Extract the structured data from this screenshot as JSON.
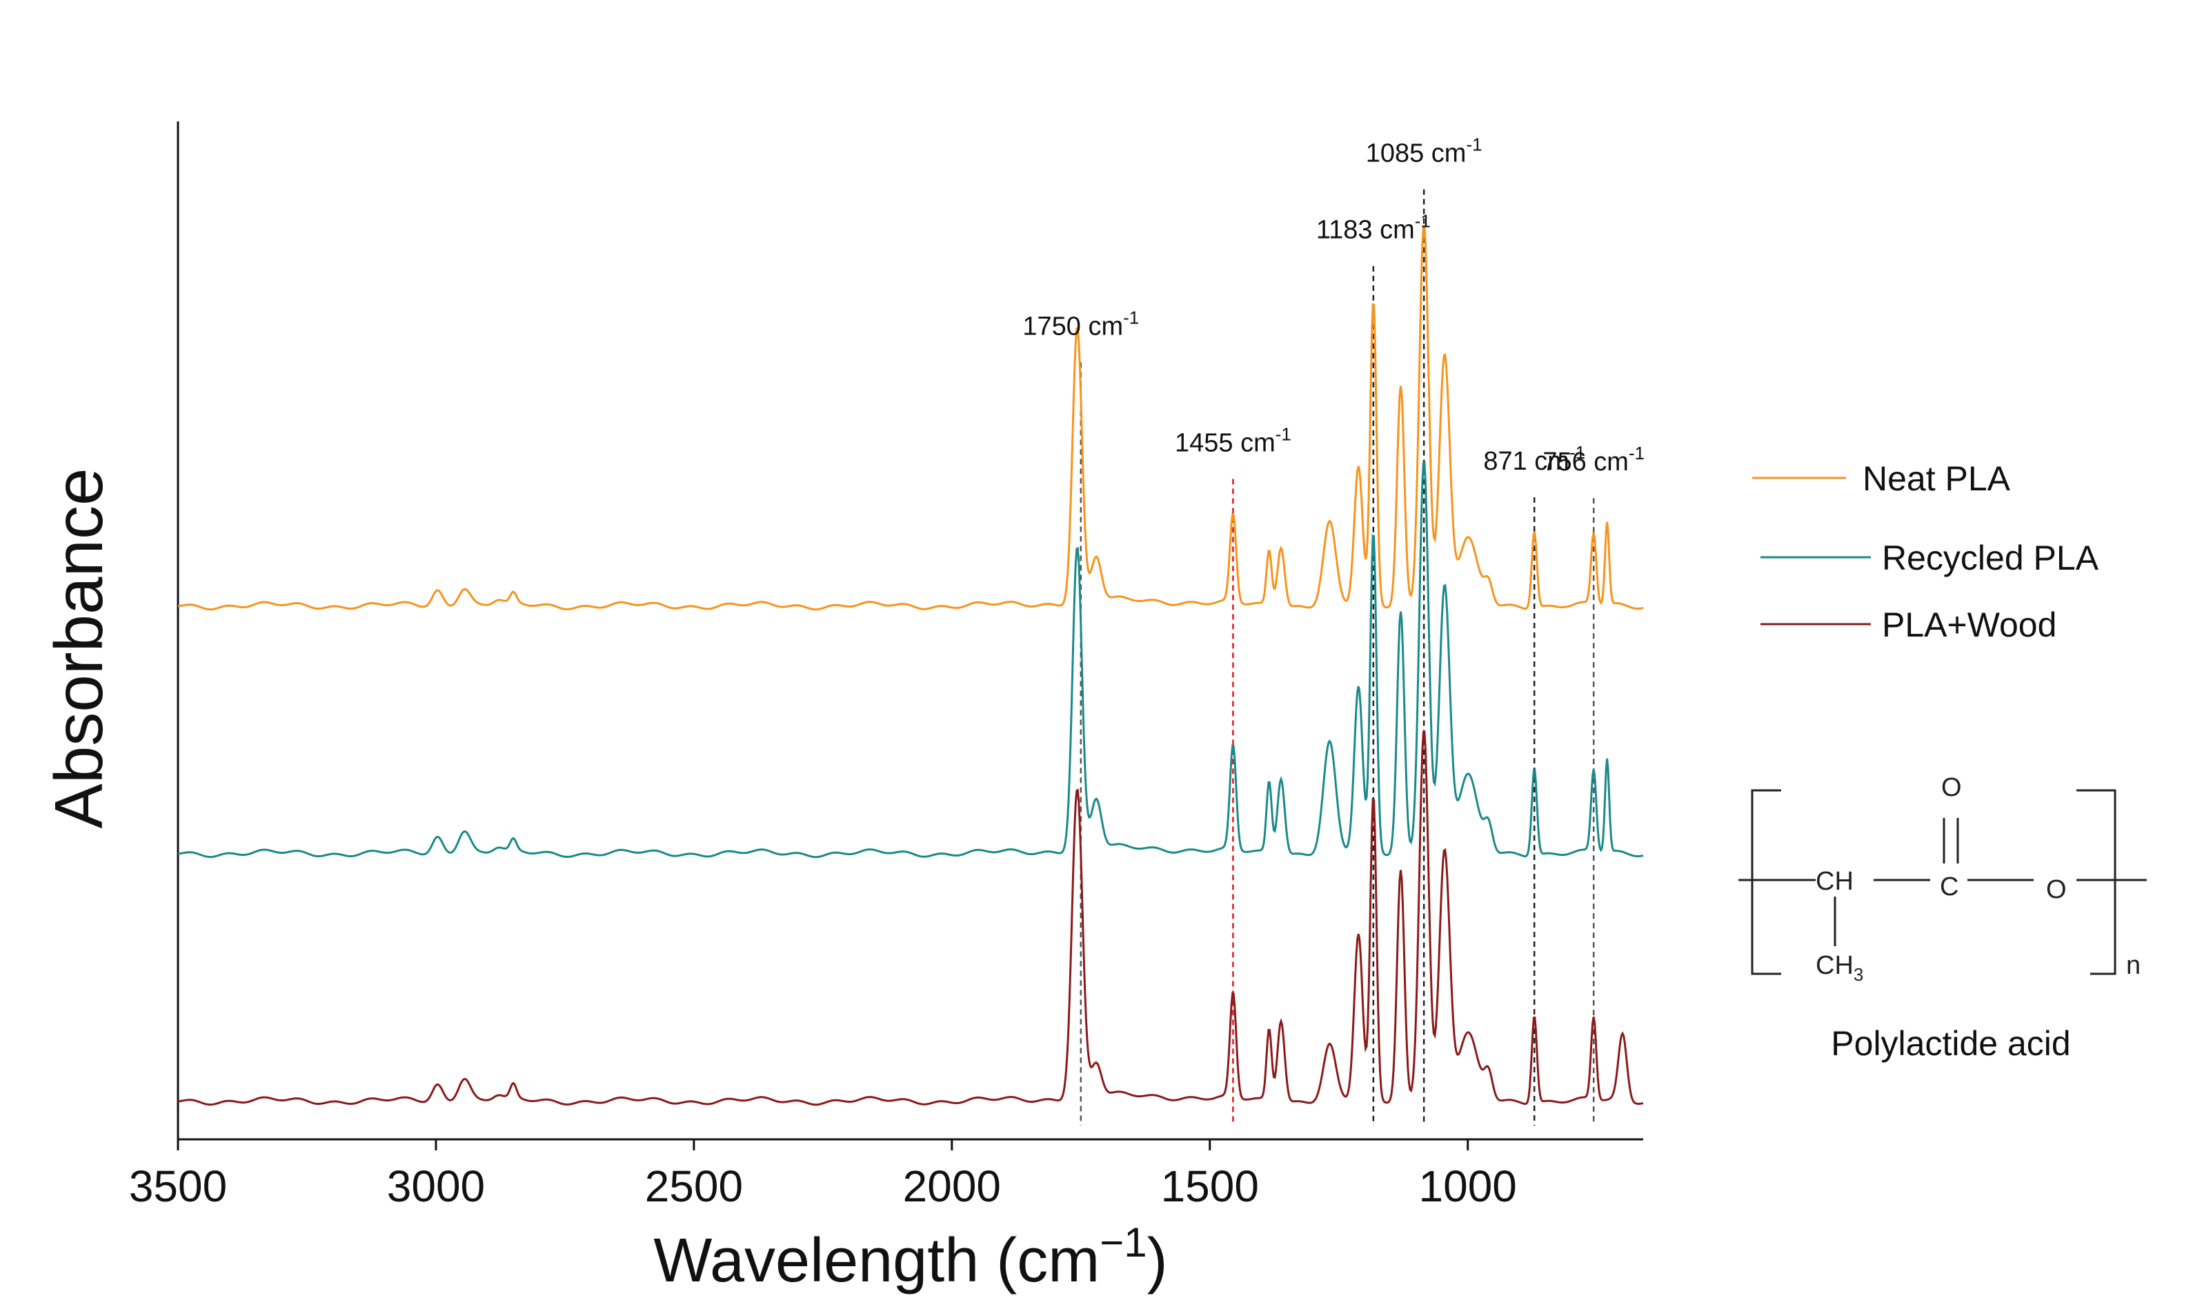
{
  "chart_data": {
    "type": "line",
    "title": "",
    "xlabel": "Wavelength (cm",
    "xlabel_unit_sup": "−1",
    "xlabel_close": ")",
    "ylabel": "Absorbance",
    "xlim": [
      3500,
      660
    ],
    "ylim": [
      0,
      1.85
    ],
    "x_ticks": [
      3500,
      3000,
      2500,
      2000,
      1500,
      1000
    ],
    "x_tick_labels": [
      "3500",
      "3000",
      "2500",
      "2000",
      "1500",
      "1000"
    ],
    "grid": false,
    "legend_position": "right",
    "series": [
      {
        "name": "Neat PLA",
        "color": "#f7941d",
        "offset": 0.97,
        "peaks": [
          [
            2997,
            0.028,
            10
          ],
          [
            2945,
            0.035,
            12
          ],
          [
            2880,
            0.01,
            10
          ],
          [
            2850,
            0.018,
            6
          ],
          [
            1757,
            0.5,
            9
          ],
          [
            1720,
            0.08,
            10
          ],
          [
            1455,
            0.16,
            6
          ],
          [
            1385,
            0.1,
            5
          ],
          [
            1362,
            0.11,
            7
          ],
          [
            1268,
            0.15,
            12
          ],
          [
            1212,
            0.25,
            8
          ],
          [
            1183,
            0.55,
            6
          ],
          [
            1130,
            0.4,
            7
          ],
          [
            1085,
            0.7,
            9
          ],
          [
            1045,
            0.45,
            10
          ],
          [
            1000,
            0.12,
            18
          ],
          [
            960,
            0.04,
            8
          ],
          [
            871,
            0.14,
            5
          ],
          [
            756,
            0.13,
            5
          ],
          [
            730,
            0.15,
            4
          ]
        ]
      },
      {
        "name": "Recycled PLA",
        "color": "#1a8a8a",
        "offset": 0.52,
        "peaks": [
          [
            2997,
            0.03,
            10
          ],
          [
            2945,
            0.045,
            12
          ],
          [
            2880,
            0.01,
            10
          ],
          [
            2850,
            0.02,
            6
          ],
          [
            1757,
            0.55,
            9
          ],
          [
            1720,
            0.09,
            10
          ],
          [
            1455,
            0.19,
            6
          ],
          [
            1385,
            0.13,
            5
          ],
          [
            1362,
            0.14,
            7
          ],
          [
            1268,
            0.2,
            12
          ],
          [
            1212,
            0.3,
            8
          ],
          [
            1183,
            0.58,
            6
          ],
          [
            1130,
            0.44,
            7
          ],
          [
            1085,
            0.72,
            9
          ],
          [
            1045,
            0.48,
            10
          ],
          [
            1000,
            0.14,
            18
          ],
          [
            960,
            0.05,
            8
          ],
          [
            871,
            0.16,
            5
          ],
          [
            756,
            0.15,
            5
          ],
          [
            730,
            0.17,
            4
          ]
        ]
      },
      {
        "name": "PLA+Wood",
        "color": "#8b1a1a",
        "offset": 0.07,
        "peaks": [
          [
            2997,
            0.03,
            10
          ],
          [
            2945,
            0.045,
            12
          ],
          [
            2880,
            0.01,
            10
          ],
          [
            2850,
            0.025,
            6
          ],
          [
            1757,
            0.56,
            10
          ],
          [
            1720,
            0.06,
            10
          ],
          [
            1455,
            0.19,
            6
          ],
          [
            1385,
            0.13,
            5
          ],
          [
            1362,
            0.15,
            7
          ],
          [
            1268,
            0.1,
            12
          ],
          [
            1212,
            0.3,
            8
          ],
          [
            1183,
            0.55,
            6
          ],
          [
            1130,
            0.42,
            7
          ],
          [
            1085,
            0.68,
            9
          ],
          [
            1045,
            0.45,
            10
          ],
          [
            1000,
            0.12,
            18
          ],
          [
            960,
            0.05,
            8
          ],
          [
            871,
            0.16,
            5
          ],
          [
            756,
            0.15,
            5
          ],
          [
            700,
            0.12,
            8
          ]
        ]
      }
    ],
    "annotations": [
      {
        "x": 1750,
        "label": "1750 cm",
        "color": "#111111",
        "line_color": "#555555"
      },
      {
        "x": 1455,
        "label": "1455 cm",
        "color": "#e0181b",
        "line_color": "#e0181b"
      },
      {
        "x": 1183,
        "label": "1183 cm",
        "color": "#111111",
        "line_color": "#222222"
      },
      {
        "x": 1085,
        "label": "1085 cm",
        "color": "#111111",
        "line_color": "#222222"
      },
      {
        "x": 871,
        "label": "871 cm",
        "color": "#111111",
        "line_color": "#222222"
      },
      {
        "x": 756,
        "label": "756 cm",
        "color": "#111111",
        "line_color": "#555555"
      }
    ],
    "annotation_sup": "-1"
  },
  "structure": {
    "caption": "Polylactide acid",
    "atoms": {
      "ch": "CH",
      "c": "C",
      "o_ester": "O",
      "o_carbonyl": "O",
      "ch3": "CH",
      "ch3_sub": "3",
      "n": "n"
    }
  }
}
